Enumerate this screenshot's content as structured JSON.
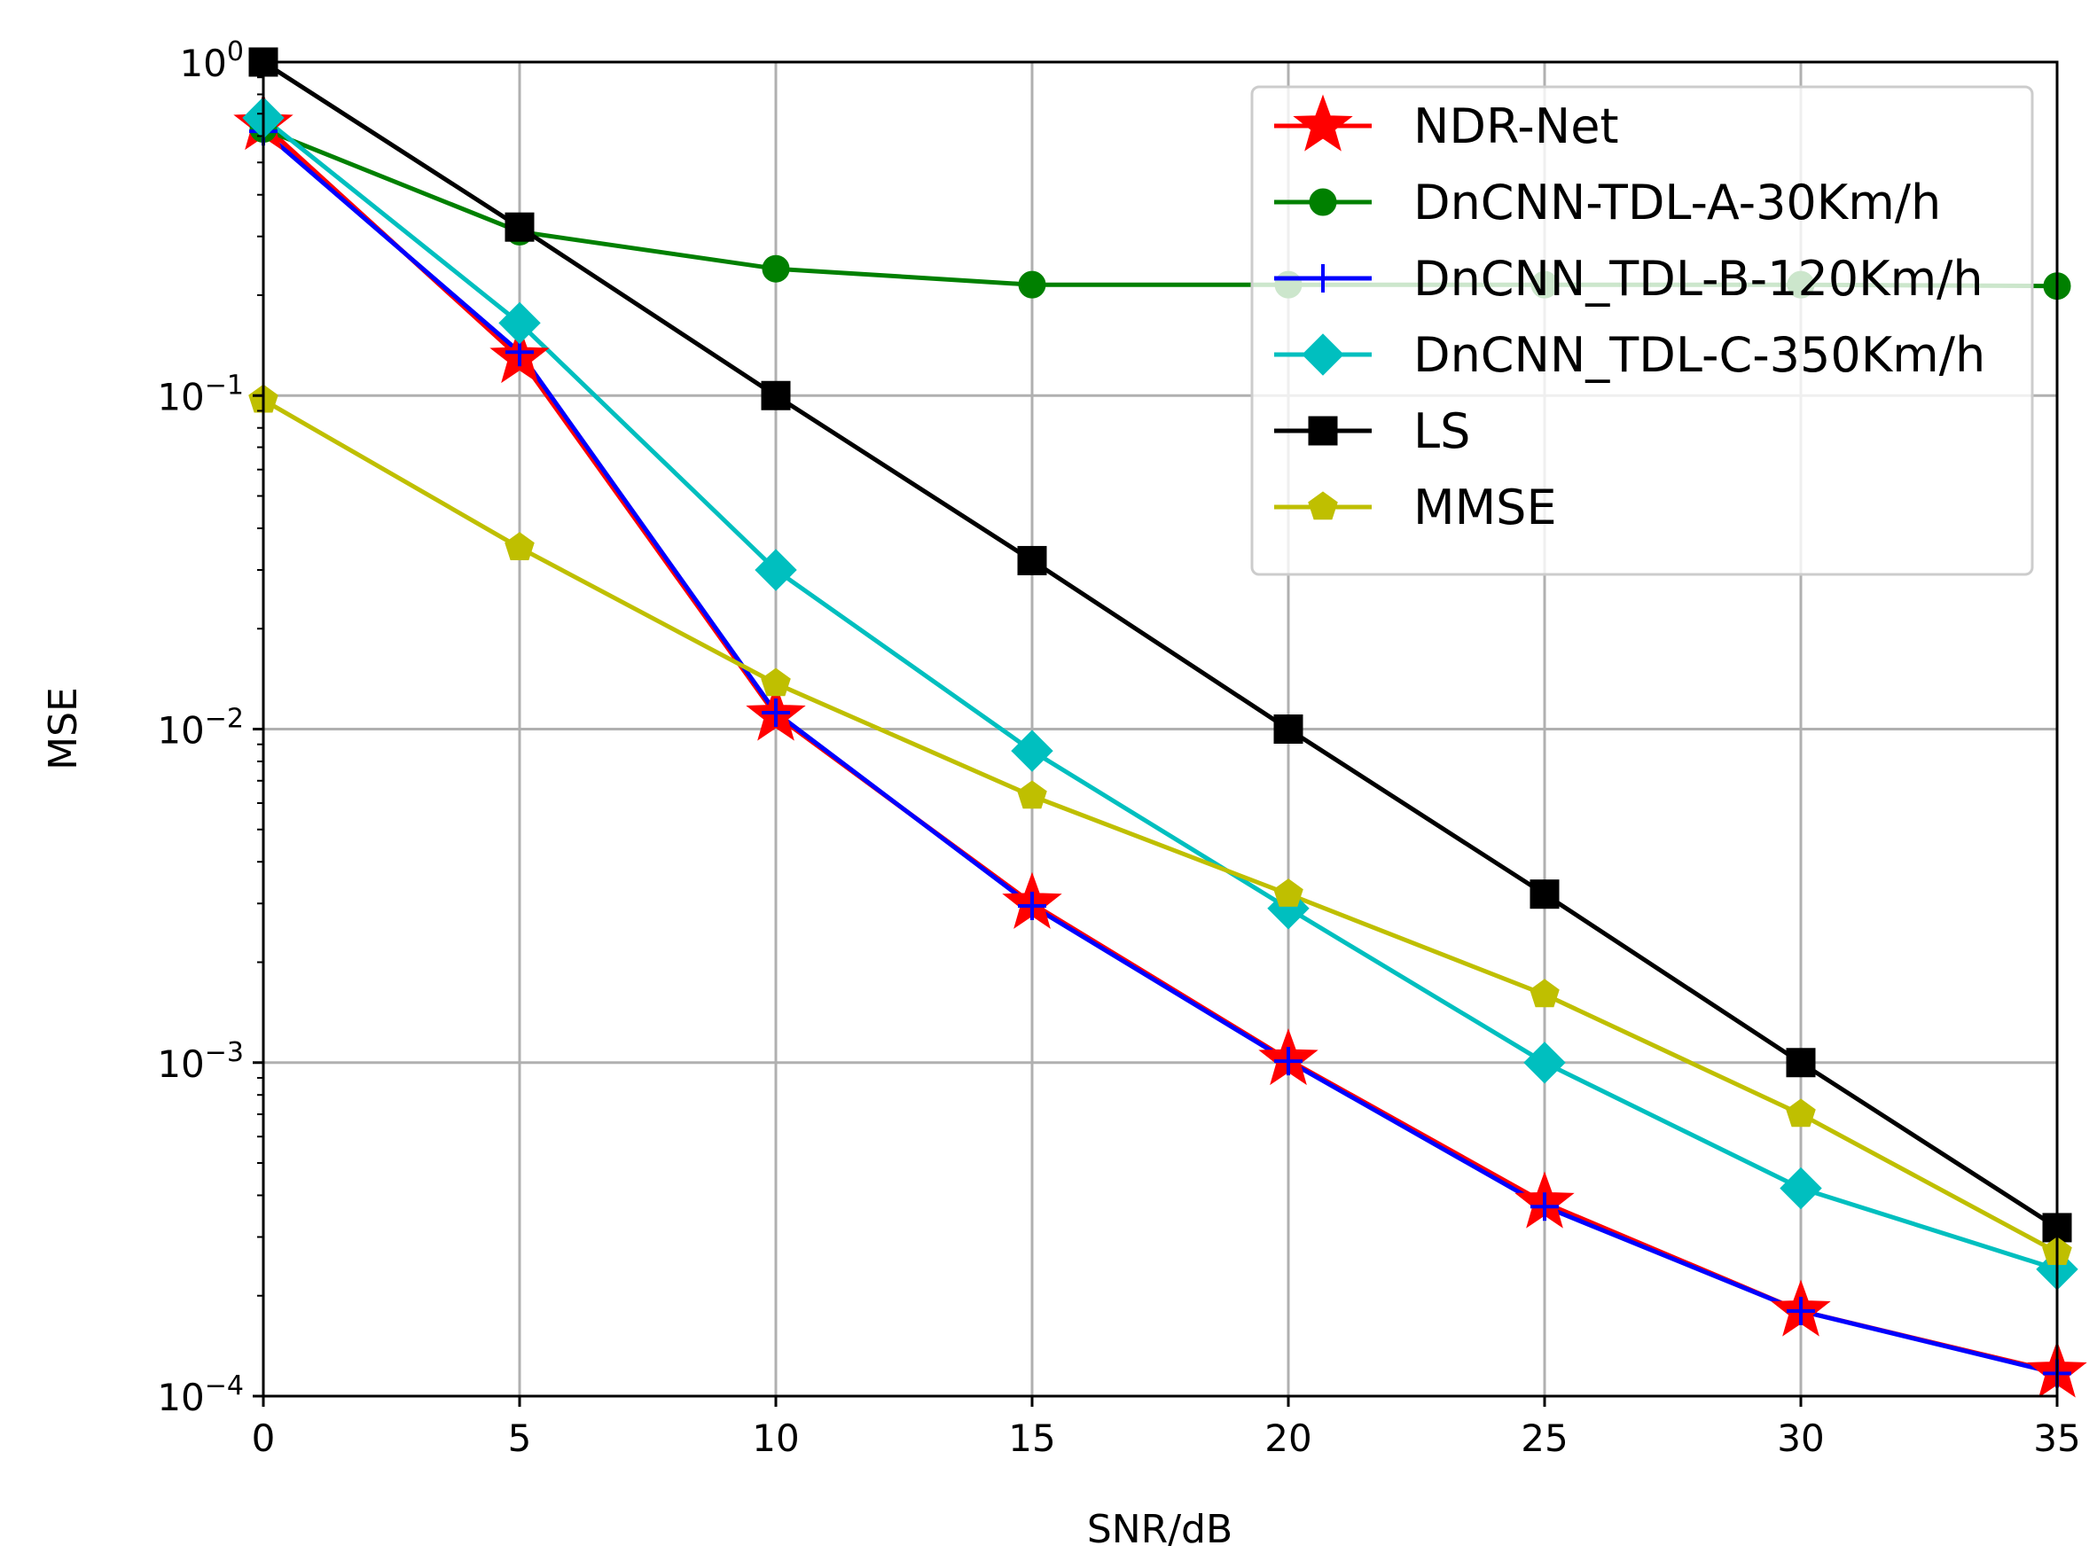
{
  "chart_data": {
    "type": "line",
    "title": "",
    "xlabel": "SNR/dB",
    "ylabel": "MSE",
    "yscale": "log",
    "xlim": [
      0,
      35
    ],
    "ylim": [
      0.0001,
      1
    ],
    "grid": true,
    "legend_position": "top-right",
    "x_ticks": [
      "0",
      "5",
      "10",
      "15",
      "20",
      "25",
      "30",
      "35"
    ],
    "y_ticks": [
      {
        "base": "10",
        "exp": "0",
        "value": 1
      },
      {
        "base": "10",
        "exp": "−1",
        "value": 0.1
      },
      {
        "base": "10",
        "exp": "−2",
        "value": 0.01
      },
      {
        "base": "10",
        "exp": "−3",
        "value": 0.001
      },
      {
        "base": "10",
        "exp": "−4",
        "value": 0.0001
      }
    ],
    "x": [
      0,
      5,
      10,
      15,
      20,
      25,
      30,
      35
    ],
    "series": [
      {
        "name": "NDR-Net",
        "color": "#ff0000",
        "marker": "star",
        "values": [
          0.65,
          0.13,
          0.011,
          0.003,
          0.00102,
          0.00038,
          0.00018,
          0.000118
        ]
      },
      {
        "name": "DnCNN-TDL-A-30Km/h",
        "color": "#008000",
        "marker": "circle",
        "values": [
          0.63,
          0.31,
          0.24,
          0.215,
          0.215,
          0.215,
          0.215,
          0.213
        ]
      },
      {
        "name": "DnCNN_TDL-B-120Km/h",
        "color": "#0000ff",
        "marker": "plus",
        "values": [
          0.62,
          0.135,
          0.0112,
          0.00295,
          0.00101,
          0.00037,
          0.00018,
          0.000117
        ]
      },
      {
        "name": "DnCNN_TDL-C-350Km/h",
        "color": "#00bfbf",
        "marker": "diamond",
        "values": [
          0.68,
          0.165,
          0.03,
          0.0086,
          0.0029,
          0.001,
          0.00042,
          0.00024
        ]
      },
      {
        "name": "LS",
        "color": "#000000",
        "marker": "square",
        "values": [
          1.0,
          0.32,
          0.1,
          0.032,
          0.01,
          0.0032,
          0.001,
          0.00032
        ]
      },
      {
        "name": "MMSE",
        "color": "#bfbf00",
        "marker": "pentagon",
        "values": [
          0.097,
          0.035,
          0.0137,
          0.0063,
          0.0032,
          0.0016,
          0.0007,
          0.00027
        ]
      }
    ]
  }
}
